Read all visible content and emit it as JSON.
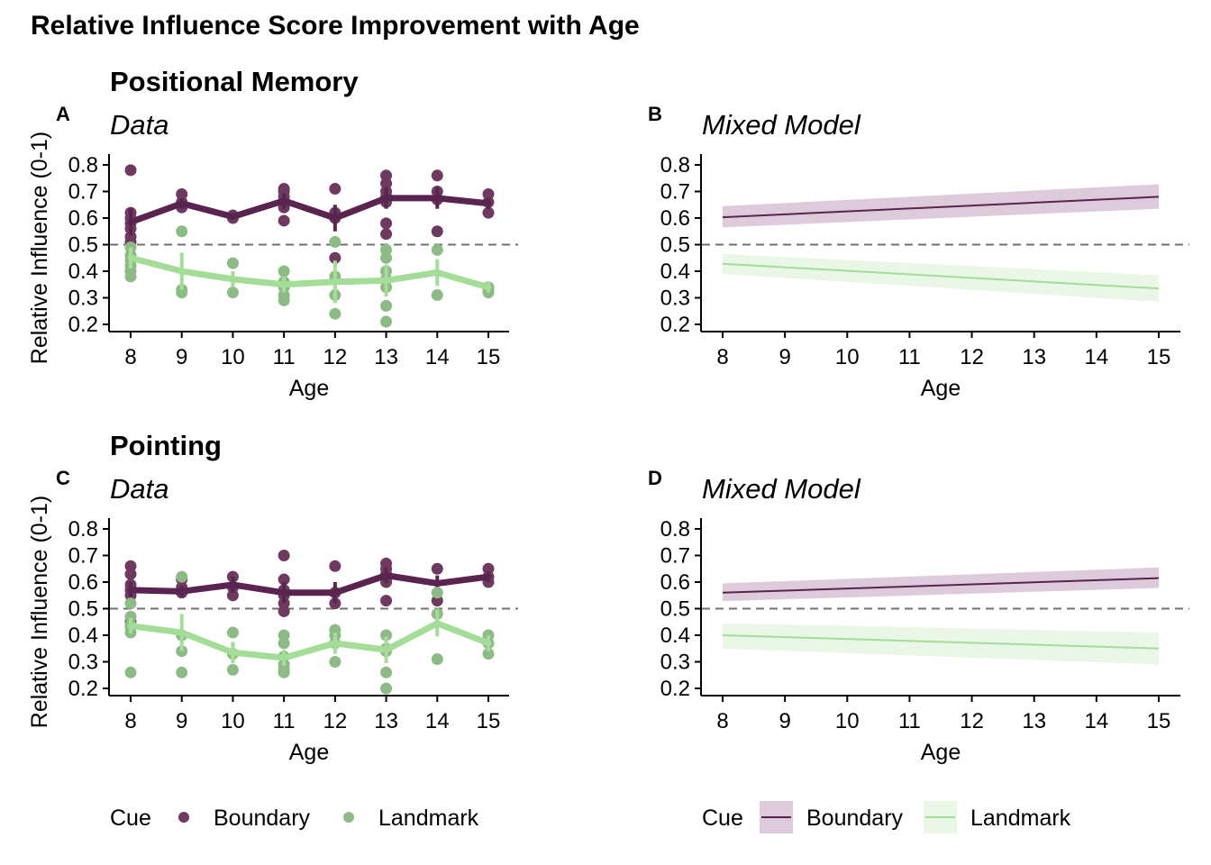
{
  "figure": {
    "title": "Relative Influence Score Improvement with Age",
    "sections": [
      "Positional Memory",
      "Pointing"
    ],
    "colors": {
      "boundary_point": "#6e3a5f",
      "boundary_line": "#5a2450",
      "boundary_band": "#ddcbdb",
      "landmark_point": "#8dbb85",
      "landmark_line": "#a3dd97",
      "landmark_band": "#eaf6e6",
      "reference_line": "#707070"
    },
    "legends": {
      "data": {
        "title": "Cue",
        "items": [
          "Boundary",
          "Landmark"
        ]
      },
      "model": {
        "title": "Cue",
        "items": [
          "Boundary",
          "Landmark"
        ]
      }
    }
  },
  "chart_data": [
    {
      "panel": "A",
      "title": "Data",
      "type": "scatter",
      "xlabel": "Age",
      "ylabel": "Relative Influence (0-1)",
      "xlim": [
        8,
        15
      ],
      "ylim": [
        0.2,
        0.8
      ],
      "x_ticks": [
        "8",
        "9",
        "10",
        "11",
        "12",
        "13",
        "14",
        "15"
      ],
      "y_ticks": [
        "0.2",
        "0.3",
        "0.4",
        "0.5",
        "0.6",
        "0.7",
        "0.8"
      ],
      "reference_line": 0.5,
      "series": [
        {
          "name": "Boundary",
          "x": [
            8,
            9,
            10,
            11,
            12,
            13,
            14,
            15
          ],
          "mean": [
            0.585,
            0.655,
            0.605,
            0.665,
            0.6,
            0.675,
            0.675,
            0.655
          ],
          "error": [
            0.05,
            0.02,
            0.01,
            0.03,
            0.05,
            0.04,
            0.04,
            0.02
          ],
          "points": [
            [
              8,
              0.78
            ],
            [
              8,
              0.62
            ],
            [
              8,
              0.6
            ],
            [
              8,
              0.58
            ],
            [
              8,
              0.56
            ],
            [
              8,
              0.53
            ],
            [
              8,
              0.51
            ],
            [
              9,
              0.69
            ],
            [
              9,
              0.66
            ],
            [
              9,
              0.64
            ],
            [
              10,
              0.61
            ],
            [
              10,
              0.6
            ],
            [
              11,
              0.71
            ],
            [
              11,
              0.7
            ],
            [
              11,
              0.68
            ],
            [
              11,
              0.66
            ],
            [
              11,
              0.64
            ],
            [
              11,
              0.59
            ],
            [
              12,
              0.71
            ],
            [
              12,
              0.62
            ],
            [
              12,
              0.6
            ],
            [
              12,
              0.45
            ],
            [
              13,
              0.76
            ],
            [
              13,
              0.73
            ],
            [
              13,
              0.7
            ],
            [
              13,
              0.68
            ],
            [
              13,
              0.66
            ],
            [
              13,
              0.58
            ],
            [
              13,
              0.54
            ],
            [
              14,
              0.76
            ],
            [
              14,
              0.7
            ],
            [
              14,
              0.67
            ],
            [
              14,
              0.55
            ],
            [
              15,
              0.69
            ],
            [
              15,
              0.66
            ],
            [
              15,
              0.62
            ]
          ]
        },
        {
          "name": "Landmark",
          "x": [
            8,
            9,
            10,
            11,
            12,
            13,
            14,
            15
          ],
          "mean": [
            0.45,
            0.4,
            0.37,
            0.35,
            0.36,
            0.365,
            0.395,
            0.34
          ],
          "error": [
            0.04,
            0.07,
            0.03,
            0.03,
            0.08,
            0.06,
            0.05,
            0.02
          ],
          "points": [
            [
              8,
              0.49
            ],
            [
              8,
              0.46
            ],
            [
              8,
              0.44
            ],
            [
              8,
              0.42
            ],
            [
              8,
              0.4
            ],
            [
              8,
              0.38
            ],
            [
              9,
              0.55
            ],
            [
              9,
              0.33
            ],
            [
              9,
              0.32
            ],
            [
              10,
              0.43
            ],
            [
              10,
              0.32
            ],
            [
              11,
              0.4
            ],
            [
              11,
              0.36
            ],
            [
              11,
              0.34
            ],
            [
              11,
              0.31
            ],
            [
              11,
              0.29
            ],
            [
              12,
              0.51
            ],
            [
              12,
              0.38
            ],
            [
              12,
              0.31
            ],
            [
              12,
              0.24
            ],
            [
              13,
              0.48
            ],
            [
              13,
              0.45
            ],
            [
              13,
              0.4
            ],
            [
              13,
              0.37
            ],
            [
              13,
              0.34
            ],
            [
              13,
              0.27
            ],
            [
              13,
              0.21
            ],
            [
              14,
              0.48
            ],
            [
              14,
              0.31
            ],
            [
              15,
              0.34
            ],
            [
              15,
              0.33
            ],
            [
              15,
              0.32
            ]
          ]
        }
      ]
    },
    {
      "panel": "B",
      "title": "Mixed Model",
      "type": "line",
      "xlabel": "Age",
      "xlim": [
        8,
        15
      ],
      "ylim": [
        0.2,
        0.8
      ],
      "x_ticks": [
        "8",
        "9",
        "10",
        "11",
        "12",
        "13",
        "14",
        "15"
      ],
      "y_ticks": [
        "0.2",
        "0.3",
        "0.4",
        "0.5",
        "0.6",
        "0.7",
        "0.8"
      ],
      "reference_line": 0.5,
      "series": [
        {
          "name": "Boundary",
          "x": [
            8,
            15
          ],
          "y": [
            0.603,
            0.68
          ],
          "lower": [
            0.565,
            0.635
          ],
          "upper": [
            0.645,
            0.727
          ]
        },
        {
          "name": "Landmark",
          "x": [
            8,
            15
          ],
          "y": [
            0.428,
            0.335
          ],
          "lower": [
            0.39,
            0.285
          ],
          "upper": [
            0.465,
            0.385
          ]
        }
      ]
    },
    {
      "panel": "C",
      "title": "Data",
      "type": "scatter",
      "xlabel": "Age",
      "ylabel": "Relative Influence (0-1)",
      "xlim": [
        8,
        15
      ],
      "ylim": [
        0.2,
        0.8
      ],
      "x_ticks": [
        "8",
        "9",
        "10",
        "11",
        "12",
        "13",
        "14",
        "15"
      ],
      "y_ticks": [
        "0.2",
        "0.3",
        "0.4",
        "0.5",
        "0.6",
        "0.7",
        "0.8"
      ],
      "reference_line": 0.5,
      "series": [
        {
          "name": "Boundary",
          "x": [
            8,
            9,
            10,
            11,
            12,
            13,
            14,
            15
          ],
          "mean": [
            0.57,
            0.565,
            0.59,
            0.56,
            0.56,
            0.625,
            0.595,
            0.62
          ],
          "error": [
            0.03,
            0.02,
            0.03,
            0.04,
            0.04,
            0.03,
            0.03,
            0.02
          ],
          "points": [
            [
              8,
              0.66
            ],
            [
              8,
              0.63
            ],
            [
              8,
              0.59
            ],
            [
              8,
              0.57
            ],
            [
              8,
              0.55
            ],
            [
              8,
              0.45
            ],
            [
              8,
              0.43
            ],
            [
              9,
              0.61
            ],
            [
              9,
              0.58
            ],
            [
              9,
              0.56
            ],
            [
              10,
              0.62
            ],
            [
              10,
              0.58
            ],
            [
              10,
              0.55
            ],
            [
              11,
              0.7
            ],
            [
              11,
              0.61
            ],
            [
              11,
              0.57
            ],
            [
              11,
              0.55
            ],
            [
              11,
              0.52
            ],
            [
              11,
              0.49
            ],
            [
              12,
              0.66
            ],
            [
              12,
              0.56
            ],
            [
              12,
              0.52
            ],
            [
              13,
              0.67
            ],
            [
              13,
              0.65
            ],
            [
              13,
              0.63
            ],
            [
              13,
              0.61
            ],
            [
              13,
              0.6
            ],
            [
              13,
              0.53
            ],
            [
              14,
              0.65
            ],
            [
              14,
              0.53
            ],
            [
              15,
              0.65
            ],
            [
              15,
              0.62
            ],
            [
              15,
              0.6
            ]
          ]
        },
        {
          "name": "Landmark",
          "x": [
            8,
            9,
            10,
            11,
            12,
            13,
            14,
            15
          ],
          "mean": [
            0.435,
            0.41,
            0.335,
            0.315,
            0.37,
            0.345,
            0.445,
            0.37
          ],
          "error": [
            0.03,
            0.07,
            0.04,
            0.03,
            0.04,
            0.05,
            0.05,
            0.03
          ],
          "points": [
            [
              8,
              0.52
            ],
            [
              8,
              0.47
            ],
            [
              8,
              0.44
            ],
            [
              8,
              0.43
            ],
            [
              8,
              0.41
            ],
            [
              8,
              0.26
            ],
            [
              9,
              0.62
            ],
            [
              9,
              0.4
            ],
            [
              9,
              0.34
            ],
            [
              9,
              0.26
            ],
            [
              10,
              0.41
            ],
            [
              10,
              0.33
            ],
            [
              10,
              0.27
            ],
            [
              11,
              0.4
            ],
            [
              11,
              0.37
            ],
            [
              11,
              0.32
            ],
            [
              11,
              0.29
            ],
            [
              11,
              0.27
            ],
            [
              11,
              0.26
            ],
            [
              12,
              0.42
            ],
            [
              12,
              0.4
            ],
            [
              12,
              0.37
            ],
            [
              12,
              0.3
            ],
            [
              13,
              0.4
            ],
            [
              13,
              0.35
            ],
            [
              13,
              0.34
            ],
            [
              13,
              0.26
            ],
            [
              13,
              0.2
            ],
            [
              14,
              0.56
            ],
            [
              14,
              0.48
            ],
            [
              14,
              0.31
            ],
            [
              15,
              0.4
            ],
            [
              15,
              0.37
            ],
            [
              15,
              0.33
            ]
          ]
        }
      ]
    },
    {
      "panel": "D",
      "title": "Mixed Model",
      "type": "line",
      "xlabel": "Age",
      "xlim": [
        8,
        15
      ],
      "ylim": [
        0.2,
        0.8
      ],
      "x_ticks": [
        "8",
        "9",
        "10",
        "11",
        "12",
        "13",
        "14",
        "15"
      ],
      "y_ticks": [
        "0.2",
        "0.3",
        "0.4",
        "0.5",
        "0.6",
        "0.7",
        "0.8"
      ],
      "reference_line": 0.5,
      "series": [
        {
          "name": "Boundary",
          "x": [
            8,
            15
          ],
          "y": [
            0.56,
            0.615
          ],
          "lower": [
            0.528,
            0.578
          ],
          "upper": [
            0.595,
            0.655
          ]
        },
        {
          "name": "Landmark",
          "x": [
            8,
            15
          ],
          "y": [
            0.4,
            0.35
          ],
          "lower": [
            0.35,
            0.29
          ],
          "upper": [
            0.445,
            0.41
          ]
        }
      ]
    }
  ]
}
